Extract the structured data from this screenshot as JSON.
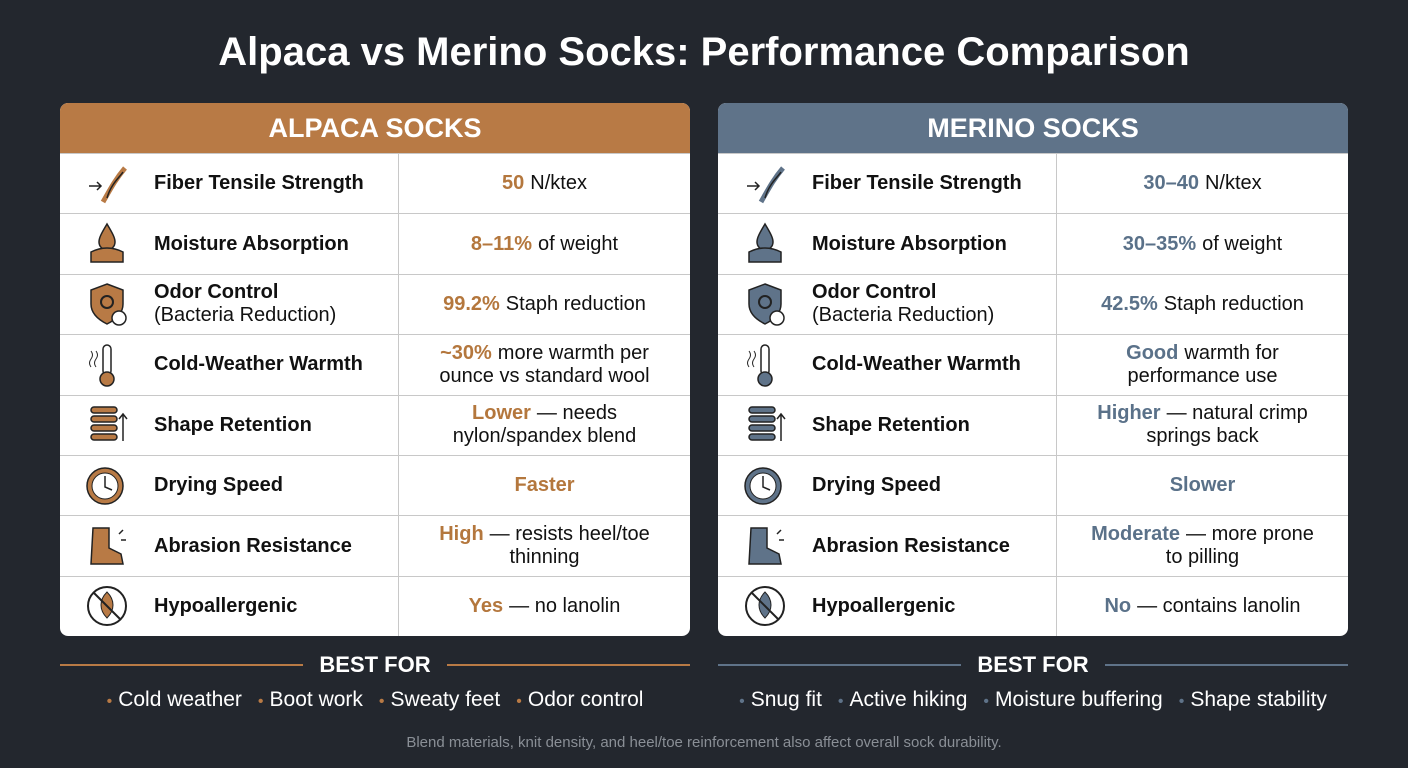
{
  "title": "Alpaca vs Merino Socks: Performance Comparison",
  "panels": [
    {
      "header": "ALPACA SOCKS",
      "accent": "#b87a45",
      "text_accent": "#b4773d",
      "rows": [
        {
          "label": "Fiber Tensile Strength",
          "em": "50",
          "rest": "N/ktex"
        },
        {
          "label": "Moisture Absorption",
          "em": "8–11%",
          "rest": "of weight"
        },
        {
          "label": "Odor Control",
          "sublabel": "(Bacteria Reduction)",
          "em": "99.2%",
          "rest": "Staph reduction"
        },
        {
          "label": "Cold-Weather Warmth",
          "em": "~30%",
          "rest": "more warmth per ounce vs standard wool"
        },
        {
          "label": "Shape Retention",
          "em": "Lower",
          "rest": "— needs nylon/spandex blend"
        },
        {
          "label": "Drying Speed",
          "em": "Faster"
        },
        {
          "label": "Abrasion Resistance",
          "em": "High",
          "rest": "— resists heel/toe thinning"
        },
        {
          "label": "Hypoallergenic",
          "em": "Yes",
          "rest": "— no lanolin"
        }
      ],
      "best_for": {
        "heading": "BEST FOR",
        "items": [
          "Cold weather",
          "Boot work",
          "Sweaty feet",
          "Odor control"
        ]
      }
    },
    {
      "header": "MERINO SOCKS",
      "accent": "#5f7389",
      "text_accent": "#5a7189",
      "rows": [
        {
          "label": "Fiber Tensile Strength",
          "em": "30–40",
          "rest": "N/ktex"
        },
        {
          "label": "Moisture Absorption",
          "em": "30–35%",
          "rest": "of weight"
        },
        {
          "label": "Odor Control",
          "sublabel": "(Bacteria Reduction)",
          "em": "42.5%",
          "rest": "Staph reduction"
        },
        {
          "label": "Cold-Weather Warmth",
          "em": "Good",
          "rest": "warmth for performance use"
        },
        {
          "label": "Shape Retention",
          "em": "Higher",
          "rest": "— natural crimp springs back"
        },
        {
          "label": "Drying Speed",
          "em": "Slower"
        },
        {
          "label": "Abrasion Resistance",
          "em": "Moderate",
          "rest": "— more prone to pilling"
        },
        {
          "label": "Hypoallergenic",
          "em": "No",
          "rest": "— contains lanolin"
        }
      ],
      "best_for": {
        "heading": "BEST FOR",
        "items": [
          "Snug fit",
          "Active hiking",
          "Moisture buffering",
          "Shape stability"
        ]
      }
    }
  ],
  "footer": "Blend materials, knit density, and heel/toe reinforcement also affect overall sock durability."
}
